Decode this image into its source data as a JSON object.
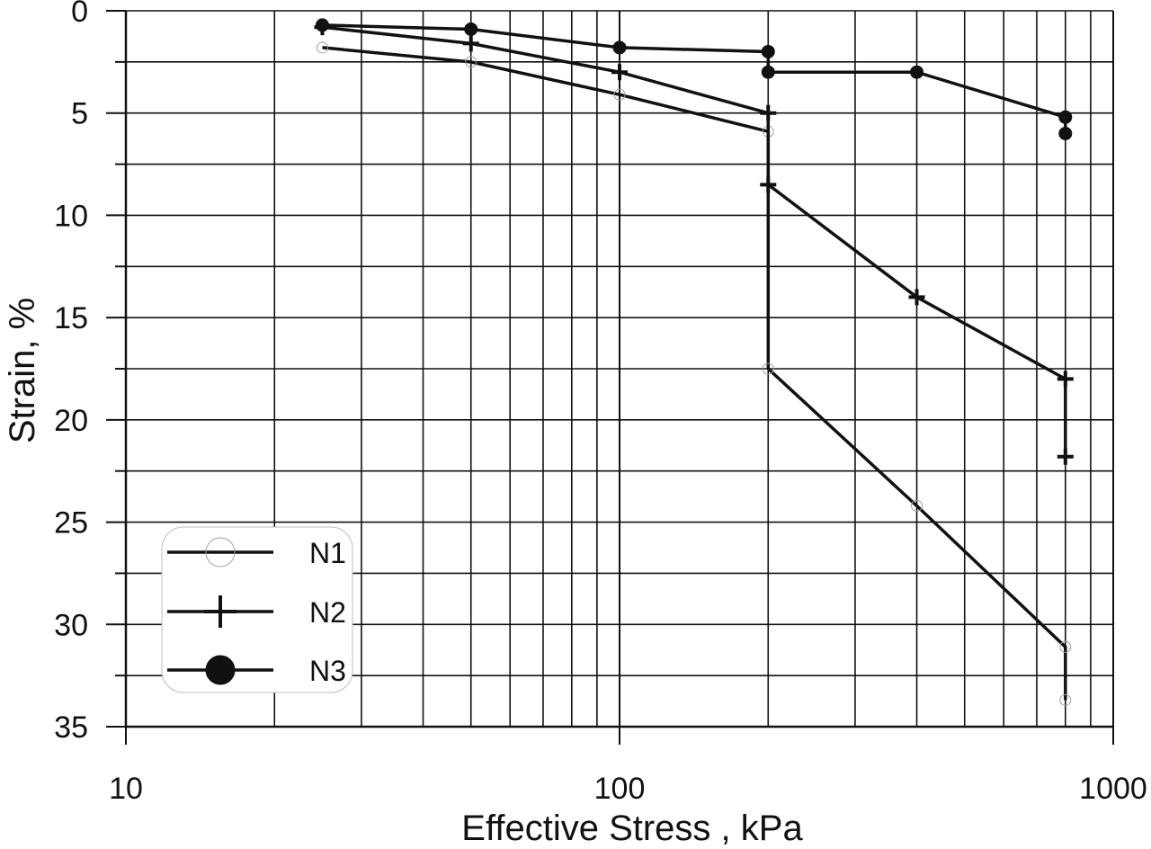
{
  "chart_data": {
    "type": "line",
    "xlabel": "Effective Stress , kPa",
    "ylabel": "Strain, %",
    "x_scale": "log",
    "xlim": [
      10,
      1000
    ],
    "ylim": [
      35,
      0
    ],
    "y_inverted": true,
    "grid": true,
    "legend_position": "bottom-left",
    "x_tick_labels": [
      "10",
      "100",
      "1000"
    ],
    "y_tick_labels": [
      "0",
      "5",
      "10",
      "15",
      "20",
      "25",
      "30",
      "35"
    ],
    "series": [
      {
        "name": "N1",
        "marker": "open-circle",
        "x": [
          25,
          50,
          100,
          200,
          200,
          400,
          800,
          800
        ],
        "y": [
          1.8,
          2.5,
          4.1,
          5.9,
          17.5,
          24.2,
          31.1,
          33.7
        ]
      },
      {
        "name": "N2",
        "marker": "plus",
        "x": [
          25,
          50,
          100,
          200,
          200,
          400,
          800,
          800
        ],
        "y": [
          0.8,
          1.6,
          3.0,
          5.0,
          8.5,
          14.0,
          18.0,
          21.8
        ]
      },
      {
        "name": "N3",
        "marker": "filled-circle",
        "x": [
          25,
          50,
          100,
          200,
          200,
          400,
          800,
          800
        ],
        "y": [
          0.7,
          0.9,
          1.8,
          2.0,
          3.0,
          3.0,
          5.2,
          6.0
        ]
      }
    ]
  },
  "colors": {
    "line": "#111111",
    "grid": "#111111",
    "background": "#ffffff",
    "legend_border": "#bdbdbd",
    "open_marker": "#9e9e9e"
  }
}
